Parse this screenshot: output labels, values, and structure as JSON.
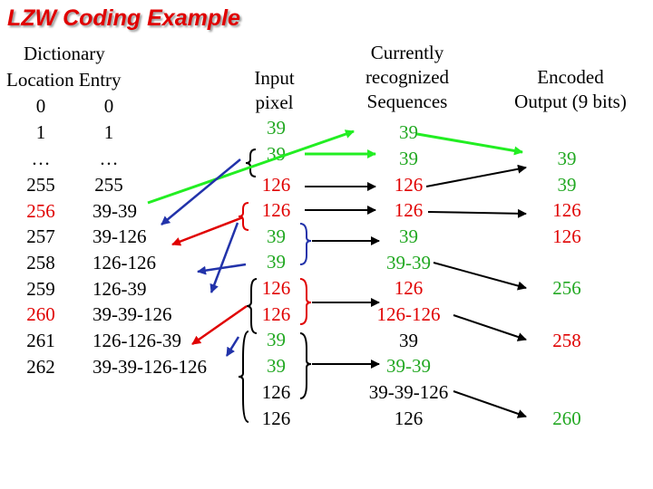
{
  "title": "LZW Coding Example",
  "headers": {
    "dictionary": [
      "Dictionary",
      "Location Entry"
    ],
    "input": [
      "Input",
      "pixel"
    ],
    "recognized": [
      "Currently",
      "recognized",
      "Sequences"
    ],
    "output": [
      "Encoded",
      "Output (9 bits)"
    ]
  },
  "dictionary": [
    {
      "location": "0",
      "entry": "0"
    },
    {
      "location": "1",
      "entry": "1"
    },
    {
      "location": "…",
      "entry": "…"
    },
    {
      "location": "255",
      "entry": "255"
    },
    {
      "location": "256",
      "entry": "39-39"
    },
    {
      "location": "257",
      "entry": "39-126"
    },
    {
      "location": "258",
      "entry": "126-126"
    },
    {
      "location": "259",
      "entry": "126-39"
    },
    {
      "location": "260",
      "entry": "39-39-126"
    },
    {
      "location": "261",
      "entry": "126-126-39"
    },
    {
      "location": "262",
      "entry": "39-39-126-126"
    }
  ],
  "input_pixels": [
    "39",
    "39",
    "126",
    "126",
    "39",
    "39",
    "126",
    "126",
    "39",
    "39",
    "126",
    "126"
  ],
  "recognized_sequences": [
    "39",
    "39",
    "126",
    "126",
    "39",
    "39-39",
    "126",
    "126-126",
    "39",
    "39-39",
    "39-39-126",
    "126"
  ],
  "encoded_output": [
    "39",
    "39",
    "126",
    "126",
    "256",
    "258",
    "260"
  ],
  "colors": {
    "title": "#e00000",
    "red": "#e00000",
    "green": "#22a822",
    "green_arrow": "#22ee22",
    "blue_arrow": "#2233aa",
    "black": "#000000"
  }
}
